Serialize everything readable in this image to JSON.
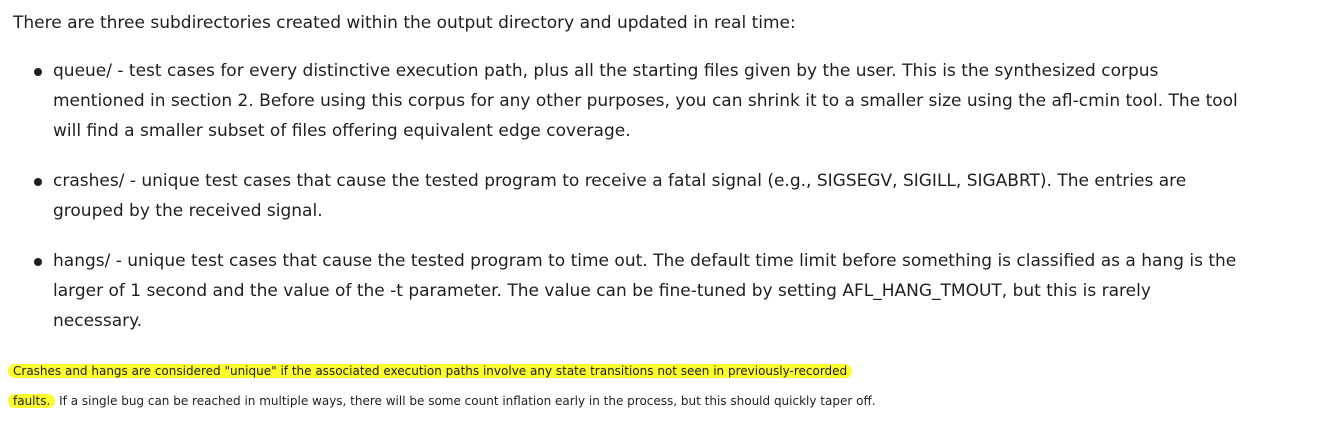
{
  "intro": "There are three subdirectories created within the output directory and updated in real time:",
  "bullets": [
    {
      "lines": [
        "queue/ - test cases for every distinctive execution path, plus all the starting files given by the user. This is the synthesized corpus",
        "mentioned in section 2. Before using this corpus for any other purposes, you can shrink it to a smaller size using the afl-cmin tool. The tool",
        "will find a smaller subset of files offering equivalent edge coverage."
      ]
    },
    {
      "lines": [
        "crashes/ - unique test cases that cause the tested program to receive a fatal signal (e.g., SIGSEGV, SIGILL, SIGABRT). The entries are",
        "grouped by the received signal."
      ]
    },
    {
      "lines": [
        "hangs/ - unique test cases that cause the tested program to time out. The default time limit before something is classified as a hang is the",
        "larger of 1 second and the value of the -t parameter. The value can be fine-tuned by setting AFL_HANG_TMOUT, but this is rarely",
        "necessary."
      ]
    }
  ],
  "closing": {
    "highlighted_line1": "Crashes and hangs are considered \"unique\" if the associated execution paths involve any state transitions not seen in previously-recorded",
    "highlighted_line2": "faults.",
    "rest_line2": " If a single bug can be reached in multiple ways, there will be some count inflation early in the process, but this should quickly taper off."
  },
  "colors": {
    "text": "#1f1f1f",
    "highlight": "#fdfd2e",
    "background": "#ffffff"
  }
}
